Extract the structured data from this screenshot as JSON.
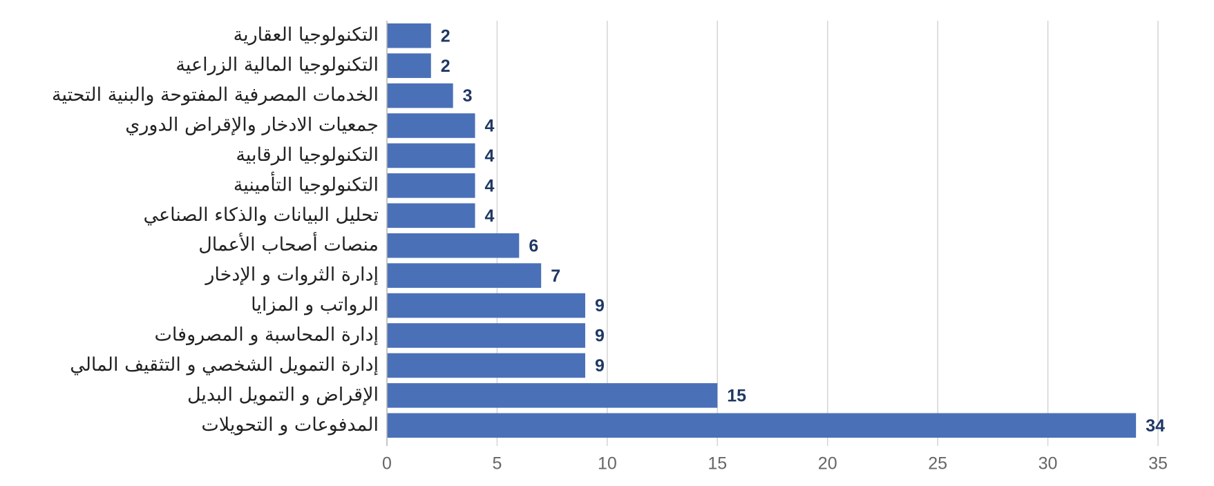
{
  "chart_data": {
    "type": "barh",
    "categories": [
      "التكنولوجيا العقارية",
      "التكنولوجيا المالية الزراعية",
      "الخدمات المصرفية المفتوحة والبنية التحتية",
      "جمعيات الادخار والإقراض الدوري",
      "التكنولوجيا الرقابية",
      "التكنولوجيا التأمينية",
      "تحليل البيانات والذكاء الصناعي",
      "منصات أصحاب الأعمال",
      "إدارة الثروات و الإدخار",
      "الرواتب و المزايا",
      "إدارة المحاسبة و المصروفات",
      "إدارة التمويل الشخصي و التثقيف المالي",
      "الإقراض و التمويل البديل",
      "المدفوعات و التحويلات"
    ],
    "values": [
      2,
      2,
      3,
      4,
      4,
      4,
      4,
      6,
      7,
      9,
      9,
      9,
      15,
      34
    ],
    "color": "#4a70b8",
    "label_color": "#1f3864",
    "xlim": [
      0,
      35
    ],
    "xticks": [
      0,
      5,
      10,
      15,
      20,
      25,
      30,
      35
    ],
    "grid": true
  }
}
